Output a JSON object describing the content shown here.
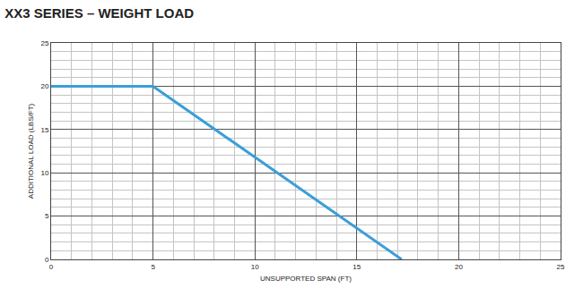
{
  "chart_data": {
    "type": "line",
    "title": "XX3 SERIES – WEIGHT LOAD",
    "x_label": "UNSUPPORTED SPAN (FT)",
    "y_label": "ADDITIONAL LOAD (LBS/FT)",
    "x": [
      0,
      5,
      17.2
    ],
    "values": [
      20,
      20,
      0
    ],
    "color": "#3a9fd8",
    "xlim": [
      0,
      25
    ],
    "xticks": [
      0,
      5,
      10,
      15,
      20,
      25
    ],
    "ylim": [
      0,
      25
    ],
    "yticks": [
      0,
      5,
      10,
      15,
      20,
      25
    ],
    "grid": true
  }
}
